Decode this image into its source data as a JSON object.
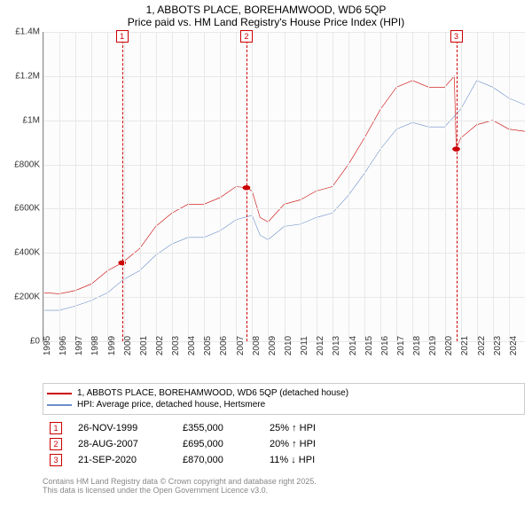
{
  "title": {
    "line1": "1, ABBOTS PLACE, BOREHAMWOOD, WD6 5QP",
    "line2": "Price paid vs. HM Land Registry's House Price Index (HPI)"
  },
  "chart": {
    "type": "line",
    "background_color": "#fcfcfc",
    "grid_color": "#e8e8e8",
    "axis_color": "#888888",
    "label_fontsize": 10,
    "ylim": [
      0,
      1400000
    ],
    "ytick_step": 200000,
    "y_ticks": [
      "£0",
      "£200K",
      "£400K",
      "£600K",
      "£800K",
      "£1M",
      "£1.2M",
      "£1.4M"
    ],
    "xlim": [
      1995,
      2025
    ],
    "x_ticks": [
      "1995",
      "1996",
      "1997",
      "1998",
      "1999",
      "2000",
      "2001",
      "2002",
      "2003",
      "2004",
      "2005",
      "2006",
      "2007",
      "2008",
      "2009",
      "2010",
      "2011",
      "2012",
      "2013",
      "2014",
      "2015",
      "2016",
      "2017",
      "2018",
      "2019",
      "2020",
      "2021",
      "2022",
      "2023",
      "2024"
    ],
    "series": [
      {
        "name": "price",
        "color": "#cc0000",
        "width": 2,
        "points": [
          [
            1995,
            220000
          ],
          [
            1996,
            215000
          ],
          [
            1997,
            230000
          ],
          [
            1998,
            260000
          ],
          [
            1999,
            320000
          ],
          [
            1999.9,
            355000
          ],
          [
            2000.5,
            390000
          ],
          [
            2001,
            420000
          ],
          [
            2002,
            520000
          ],
          [
            2003,
            580000
          ],
          [
            2004,
            620000
          ],
          [
            2005,
            620000
          ],
          [
            2006,
            650000
          ],
          [
            2007,
            700000
          ],
          [
            2007.65,
            695000
          ],
          [
            2008,
            680000
          ],
          [
            2008.5,
            560000
          ],
          [
            2009,
            540000
          ],
          [
            2010,
            620000
          ],
          [
            2011,
            640000
          ],
          [
            2012,
            680000
          ],
          [
            2013,
            700000
          ],
          [
            2014,
            800000
          ],
          [
            2015,
            920000
          ],
          [
            2016,
            1050000
          ],
          [
            2017,
            1150000
          ],
          [
            2018,
            1180000
          ],
          [
            2019,
            1150000
          ],
          [
            2020,
            1150000
          ],
          [
            2020.6,
            1200000
          ],
          [
            2020.72,
            870000
          ],
          [
            2021,
            920000
          ],
          [
            2022,
            980000
          ],
          [
            2023,
            1000000
          ],
          [
            2024,
            960000
          ],
          [
            2025,
            950000
          ]
        ]
      },
      {
        "name": "hpi",
        "color": "#6b8fc9",
        "width": 2,
        "points": [
          [
            1995,
            140000
          ],
          [
            1996,
            140000
          ],
          [
            1997,
            160000
          ],
          [
            1998,
            185000
          ],
          [
            1999,
            220000
          ],
          [
            2000,
            280000
          ],
          [
            2001,
            320000
          ],
          [
            2002,
            390000
          ],
          [
            2003,
            440000
          ],
          [
            2004,
            470000
          ],
          [
            2005,
            470000
          ],
          [
            2006,
            500000
          ],
          [
            2007,
            550000
          ],
          [
            2008,
            570000
          ],
          [
            2008.5,
            480000
          ],
          [
            2009,
            460000
          ],
          [
            2010,
            520000
          ],
          [
            2011,
            530000
          ],
          [
            2012,
            560000
          ],
          [
            2013,
            580000
          ],
          [
            2014,
            660000
          ],
          [
            2015,
            760000
          ],
          [
            2016,
            870000
          ],
          [
            2017,
            960000
          ],
          [
            2018,
            990000
          ],
          [
            2019,
            970000
          ],
          [
            2020,
            970000
          ],
          [
            2021,
            1050000
          ],
          [
            2022,
            1180000
          ],
          [
            2023,
            1150000
          ],
          [
            2024,
            1100000
          ],
          [
            2025,
            1070000
          ]
        ]
      }
    ],
    "markers": [
      {
        "n": "1",
        "year": 1999.9,
        "color": "#cc0000",
        "price_marker_y": 355000
      },
      {
        "n": "2",
        "year": 2007.65,
        "color": "#cc0000",
        "price_marker_y": 695000
      },
      {
        "n": "3",
        "year": 2020.72,
        "color": "#cc0000",
        "price_marker_y": 870000
      }
    ]
  },
  "legend": {
    "items": [
      {
        "color": "#cc0000",
        "label": "1, ABBOTS PLACE, BOREHAMWOOD, WD6 5QP (detached house)"
      },
      {
        "color": "#6b8fc9",
        "label": "HPI: Average price, detached house, Hertsmere"
      }
    ]
  },
  "events": [
    {
      "n": "1",
      "color": "#cc0000",
      "date": "26-NOV-1999",
      "price": "£355,000",
      "delta": "25% ↑ HPI"
    },
    {
      "n": "2",
      "color": "#cc0000",
      "date": "28-AUG-2007",
      "price": "£695,000",
      "delta": "20% ↑ HPI"
    },
    {
      "n": "3",
      "color": "#cc0000",
      "date": "21-SEP-2020",
      "price": "£870,000",
      "delta": "11% ↓ HPI"
    }
  ],
  "footer": {
    "line1": "Contains HM Land Registry data © Crown copyright and database right 2025.",
    "line2": "This data is licensed under the Open Government Licence v3.0."
  }
}
